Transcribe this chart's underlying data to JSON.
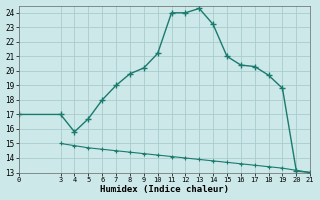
{
  "xlabel": "Humidex (Indice chaleur)",
  "upper_x": [
    0,
    3,
    4,
    5,
    6,
    7,
    8,
    9,
    10,
    11,
    12,
    13,
    14,
    15,
    16,
    17,
    18,
    19,
    20,
    21
  ],
  "upper_y": [
    17.0,
    17.0,
    15.8,
    16.7,
    18.0,
    19.0,
    19.8,
    20.2,
    21.2,
    24.0,
    24.0,
    24.3,
    23.2,
    21.0,
    20.4,
    20.3,
    19.7,
    18.8,
    13.1,
    13.0
  ],
  "lower_x": [
    3,
    4,
    5,
    6,
    7,
    8,
    9,
    10,
    11,
    12,
    13,
    14,
    15,
    16,
    17,
    18,
    19,
    20,
    21
  ],
  "lower_y": [
    15.0,
    14.85,
    14.7,
    14.6,
    14.5,
    14.4,
    14.3,
    14.2,
    14.1,
    14.0,
    13.9,
    13.8,
    13.7,
    13.6,
    13.5,
    13.4,
    13.3,
    13.15,
    13.0
  ],
  "line_color": "#1a7a6e",
  "bg_color": "#cce8e8",
  "grid_color": "#aacccc",
  "xlim": [
    0,
    21
  ],
  "ylim": [
    13,
    24.5
  ],
  "yticks": [
    13,
    14,
    15,
    16,
    17,
    18,
    19,
    20,
    21,
    22,
    23,
    24
  ],
  "xticks": [
    0,
    3,
    4,
    5,
    6,
    7,
    8,
    9,
    10,
    11,
    12,
    13,
    14,
    15,
    16,
    17,
    18,
    19,
    20,
    21
  ]
}
